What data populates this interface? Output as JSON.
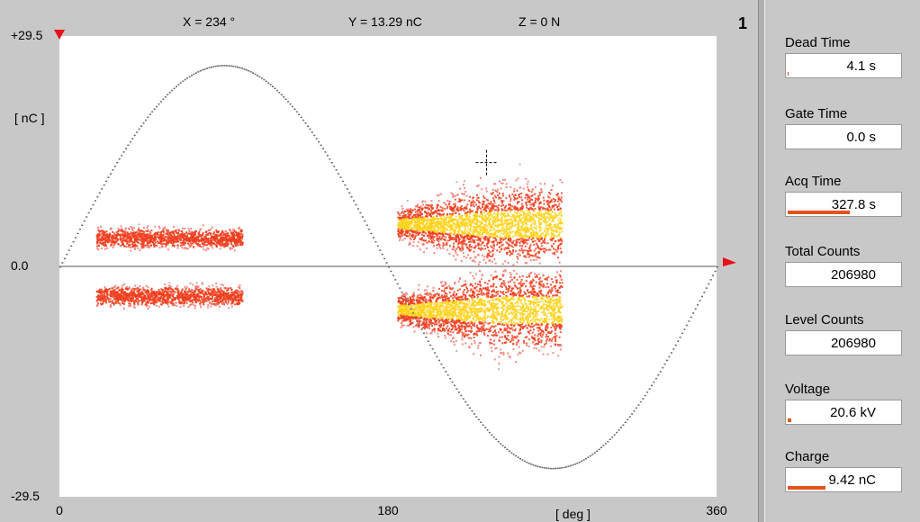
{
  "readouts": {
    "x": "X = 234 °",
    "y": "Y = 13.29 nC",
    "z": "Z =   0 N"
  },
  "channel": "1",
  "chart_data": {
    "type": "scatter",
    "y_unit_label": "[ nC ]",
    "x_unit_label": "[ deg ]",
    "xlim": [
      0,
      360
    ],
    "ylim": [
      -29.5,
      29.5
    ],
    "y_ticks": [
      "+29.5",
      "0.0",
      "-29.5"
    ],
    "x_ticks": [
      "0",
      "180",
      "360"
    ],
    "sine_reference": {
      "amplitude": 25.8,
      "phase_deg": 0
    },
    "clusters": [
      {
        "name": "positive-low-phase",
        "x_range": [
          20,
          100
        ],
        "y_center": 3.7,
        "y_spread": 1.2,
        "intensity": 0.5
      },
      {
        "name": "negative-low-phase",
        "x_range": [
          20,
          100
        ],
        "y_center": -3.7,
        "y_spread": 1.2,
        "intensity": 0.5
      },
      {
        "name": "positive-high-phase",
        "x_range": [
          185,
          275
        ],
        "y_center": 5.5,
        "y_spread": 5.0,
        "intensity": 1.0
      },
      {
        "name": "negative-high-phase",
        "x_range": [
          185,
          275
        ],
        "y_center": -5.5,
        "y_spread": 5.0,
        "intensity": 1.0
      }
    ],
    "cursor": {
      "x": 234,
      "y": 13.29
    }
  },
  "stats": [
    {
      "label": "Dead Time",
      "value": "4.1 s",
      "bar": 0.01
    },
    {
      "label": "Gate Time",
      "value": "0.0 s",
      "bar": 0
    },
    {
      "label": "Acq Time",
      "value": "327.8 s",
      "bar": 0.55
    },
    {
      "label": "Total Counts",
      "value": "206980",
      "bar": 0
    },
    {
      "label": "Level Counts",
      "value": "206980",
      "bar": 0
    },
    {
      "label": "Voltage",
      "value": "20.6 kV",
      "bar": 0.03
    },
    {
      "label": "Charge",
      "value": "9.42 nC",
      "bar": 0.33
    }
  ],
  "colors": {
    "accent": "#e2541a",
    "marker_red": "#e8101a",
    "pulse_hot": "#ffd21a",
    "pulse_mid": "#f04020",
    "pulse_cold": "#888888"
  }
}
